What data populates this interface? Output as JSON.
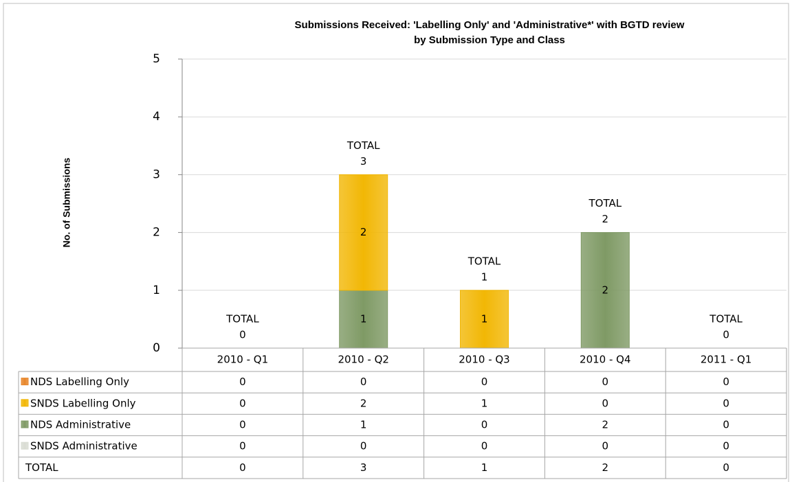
{
  "chart_data": {
    "type": "stacked_bar",
    "title": [
      "Submissions Received: 'Labelling Only' and 'Administrative*' with BGTD review",
      "by Submission Type and Class"
    ],
    "y_label": "No. of Submissions",
    "categories": [
      "2010 - Q1",
      "2010 - Q2",
      "2010 - Q3",
      "2010 - Q4",
      "2011 - Q1"
    ],
    "series": [
      {
        "name": "NDS Labelling Only",
        "color": "#e8862a",
        "values": [
          0,
          0,
          0,
          0,
          0
        ]
      },
      {
        "name": "SNDS Labelling Only",
        "color": "#f2b705",
        "values": [
          0,
          2,
          1,
          0,
          0
        ]
      },
      {
        "name": "NDS Administrative",
        "color": "#7f9a65",
        "values": [
          0,
          1,
          0,
          2,
          0
        ]
      },
      {
        "name": "SNDS Administrative",
        "color": "#d9dcd3",
        "values": [
          0,
          0,
          0,
          0,
          0
        ]
      }
    ],
    "stack_order": [
      2,
      0,
      3,
      1
    ],
    "total_label": "TOTAL",
    "totals": [
      0,
      3,
      1,
      2,
      0
    ],
    "ylim": [
      0,
      5
    ],
    "yticks": [
      0,
      1,
      2,
      3,
      4,
      5
    ],
    "grid": true
  }
}
